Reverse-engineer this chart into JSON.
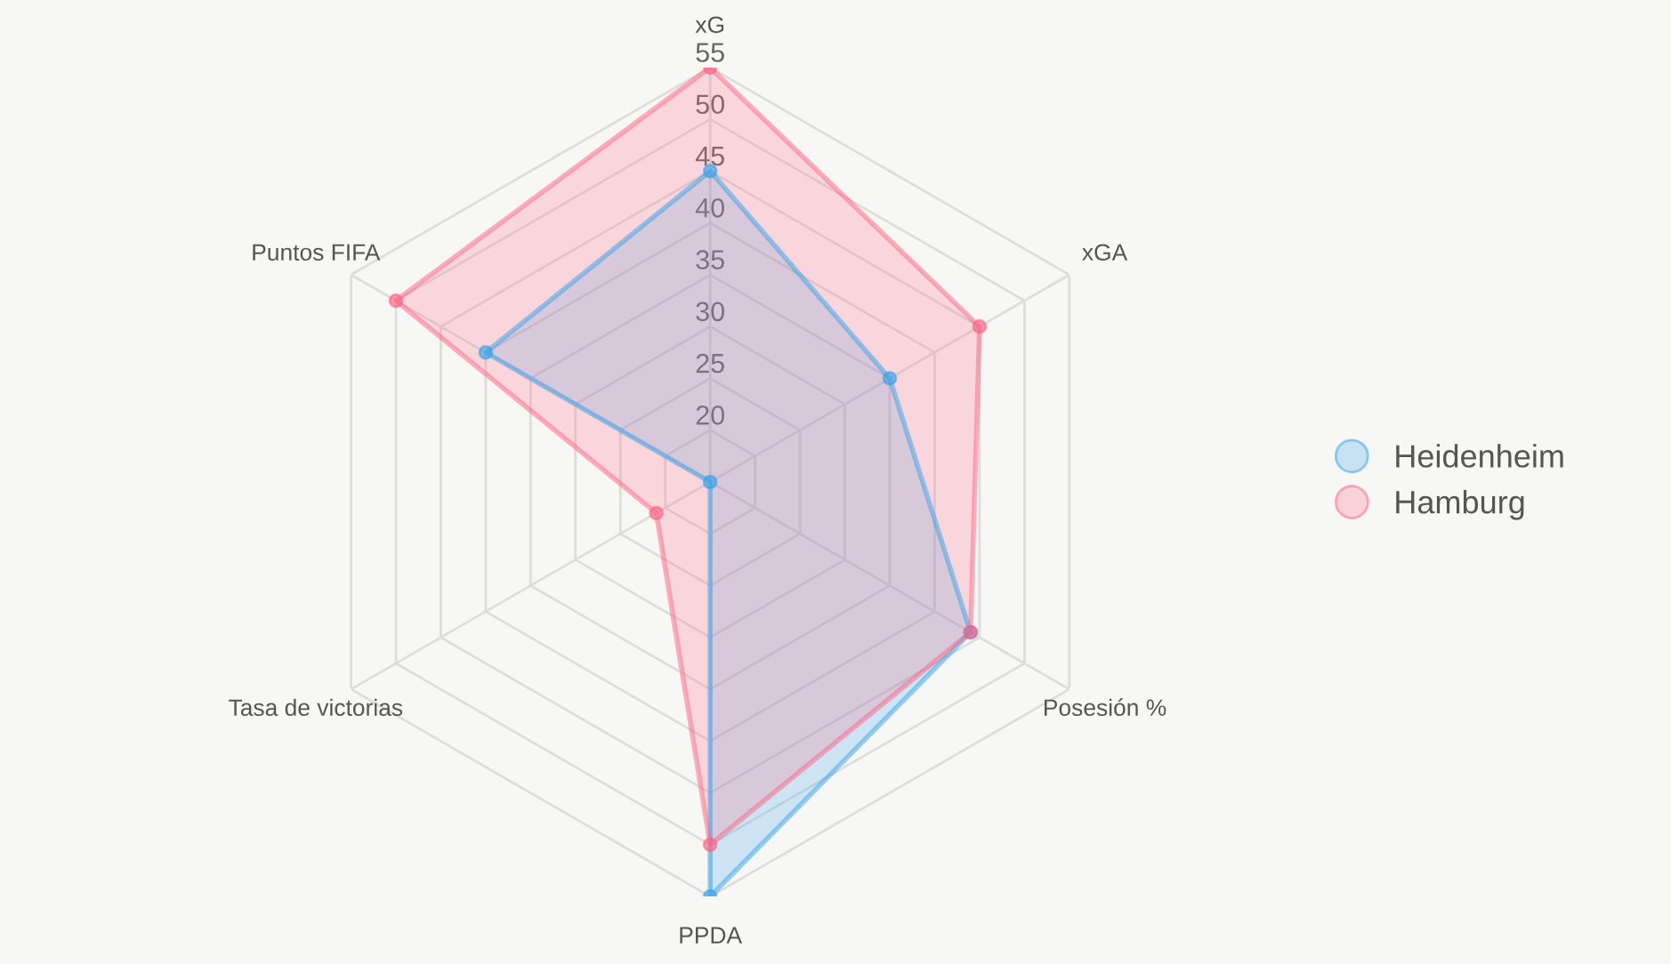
{
  "chart_data": {
    "type": "radar",
    "categories": [
      "xG",
      "xGA",
      "Posesión %",
      "PPDA",
      "Tasa de victorias",
      "Puntos FIFA"
    ],
    "series": [
      {
        "name": "Heidenheim",
        "color": "#36a2eb",
        "values": [
          45,
          35,
          44,
          55,
          15,
          40
        ]
      },
      {
        "name": "Hamburg",
        "color": "#ff6384",
        "values": [
          55,
          45,
          44,
          50,
          21,
          50
        ]
      }
    ],
    "ylim": [
      15,
      55
    ],
    "yticks": [
      20,
      25,
      30,
      35,
      40,
      45,
      50,
      55
    ],
    "grid": true,
    "legend": "right",
    "marker": "circle"
  }
}
